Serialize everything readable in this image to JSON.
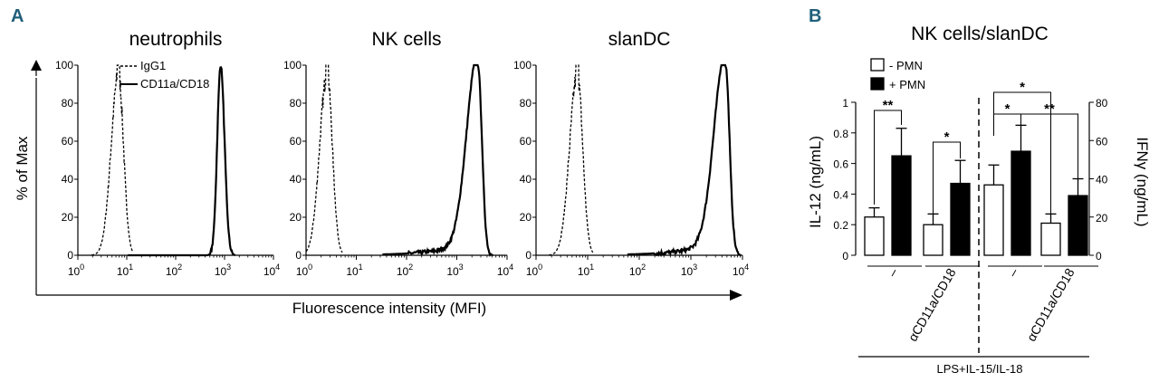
{
  "panel_a": {
    "letter": "A",
    "ylabel": "% of Max",
    "xlabel": "Fluorescence intensity (MFI)",
    "y_ticks": [
      "0",
      "20",
      "40",
      "60",
      "80",
      "100"
    ],
    "x_ticks": [
      {
        "base": "10",
        "exp": "0"
      },
      {
        "base": "10",
        "exp": "1"
      },
      {
        "base": "10",
        "exp": "2"
      },
      {
        "base": "10",
        "exp": "3"
      },
      {
        "base": "10",
        "exp": "4"
      }
    ],
    "legend": {
      "isotype": "IgG1",
      "stain": "CD11a/CD18"
    },
    "charts": [
      {
        "title": "neutrophils",
        "isotype_peak_log": 0.83,
        "stain_peak_log": 2.92
      },
      {
        "title": "NK cells",
        "isotype_peak_log": 0.42,
        "stain_peak_log": 3.42
      },
      {
        "title": "slanDC",
        "isotype_peak_log": 0.8,
        "stain_peak_log": 3.67
      }
    ]
  },
  "panel_b": {
    "letter": "B",
    "title": "NK cells/slanDC",
    "ylabel_left": "IL-12 (ng/mL)",
    "ylabel_right": "IFNγ (ng/mL)",
    "left_ticks": [
      "0",
      "0.2",
      "0.4",
      "0.6",
      "0.8",
      "1"
    ],
    "right_ticks": [
      "0",
      "20",
      "40",
      "60",
      "80"
    ],
    "legend": [
      {
        "label": "- PMN",
        "color": "#ffffff"
      },
      {
        "label": "+ PMN",
        "color": "#000000"
      }
    ],
    "group_labels": [
      "–",
      "αCD11a/CD18",
      "–",
      "αCD11a/CD18"
    ],
    "bottom_label": "LPS+IL-15/IL-18",
    "sig": {
      "double": "**",
      "single": "*"
    }
  },
  "chart_data": [
    {
      "type": "line",
      "title": "neutrophils",
      "xlabel": "Fluorescence intensity (MFI)",
      "ylabel": "% of Max",
      "x_scale": "log",
      "xlim": [
        1,
        10000
      ],
      "ylim": [
        0,
        100
      ],
      "series": [
        {
          "name": "IgG1",
          "style": "dashed",
          "peak_mfi": 6.8,
          "peak_value": 100
        },
        {
          "name": "CD11a/CD18",
          "style": "solid",
          "peak_mfi": 830,
          "peak_value": 100
        }
      ]
    },
    {
      "type": "line",
      "title": "NK cells",
      "xlabel": "Fluorescence intensity (MFI)",
      "ylabel": "% of Max",
      "x_scale": "log",
      "xlim": [
        1,
        10000
      ],
      "ylim": [
        0,
        100
      ],
      "series": [
        {
          "name": "IgG1",
          "style": "dashed",
          "peak_mfi": 2.6,
          "peak_value": 100
        },
        {
          "name": "CD11a/CD18",
          "style": "solid",
          "peak_mfi": 2630,
          "peak_value": 100
        }
      ]
    },
    {
      "type": "line",
      "title": "slanDC",
      "xlabel": "Fluorescence intensity (MFI)",
      "ylabel": "% of Max",
      "x_scale": "log",
      "xlim": [
        1,
        10000
      ],
      "ylim": [
        0,
        100
      ],
      "series": [
        {
          "name": "IgG1",
          "style": "dashed",
          "peak_mfi": 6.3,
          "peak_value": 100
        },
        {
          "name": "CD11a/CD18",
          "style": "solid",
          "peak_mfi": 4680,
          "peak_value": 100
        }
      ]
    },
    {
      "type": "bar",
      "title": "NK cells/slanDC",
      "categories": [
        "–",
        "αCD11a/CD18",
        "–",
        "αCD11a/CD18"
      ],
      "ylabel": "IL-12 (ng/mL)",
      "ylim": [
        0,
        1
      ],
      "ylabel_right": "IFNγ (ng/mL)",
      "ylim_right": [
        0,
        80
      ],
      "series": [
        {
          "name": "- PMN",
          "color": "#ffffff",
          "values": [
            0.25,
            0.2,
            0.46,
            0.21
          ],
          "errors": [
            0.06,
            0.07,
            0.13,
            0.06
          ]
        },
        {
          "name": "+ PMN",
          "color": "#000000",
          "values": [
            0.65,
            0.47,
            0.68,
            0.39
          ],
          "errors": [
            0.18,
            0.15,
            0.17,
            0.11
          ]
        }
      ]
    }
  ]
}
